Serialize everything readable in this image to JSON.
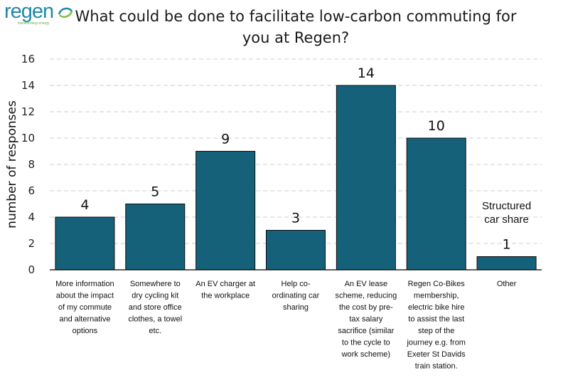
{
  "logo": {
    "text": "regen",
    "tagline": "transforming energy"
  },
  "chart_data": {
    "type": "bar",
    "title": "What could be done to facilitate low-carbon commuting for you at Regen?",
    "ylabel": "number of responses",
    "xlabel": "",
    "ylim": [
      0,
      16
    ],
    "yticks": [
      0,
      2,
      4,
      6,
      8,
      10,
      12,
      14,
      16
    ],
    "grid": true,
    "bar_color": "#16617a",
    "categories": [
      [
        "More information",
        "about the impact",
        "of my commute",
        "and alternative",
        "options"
      ],
      [
        "Somewhere to",
        "dry cycling kit",
        "and store office",
        "clothes, a towel",
        "etc."
      ],
      [
        "An EV charger at",
        "the workplace"
      ],
      [
        "Help co-",
        "ordinating car",
        "sharing"
      ],
      [
        "An EV lease",
        "scheme, reducing",
        "the cost by pre-",
        "tax salary",
        "sacrifice (similar",
        "to the cycle to",
        "work scheme)"
      ],
      [
        "Regen Co-Bikes",
        "membership,",
        "electric bike hire",
        "to assist the last",
        "step of the",
        "journey e.g. from",
        "Exeter St Davids",
        "train station."
      ],
      [
        "Other"
      ]
    ],
    "values": [
      4,
      5,
      9,
      3,
      14,
      10,
      1
    ],
    "annotations": [
      {
        "category_index": 6,
        "lines": [
          "Structured",
          "car share"
        ]
      }
    ]
  }
}
